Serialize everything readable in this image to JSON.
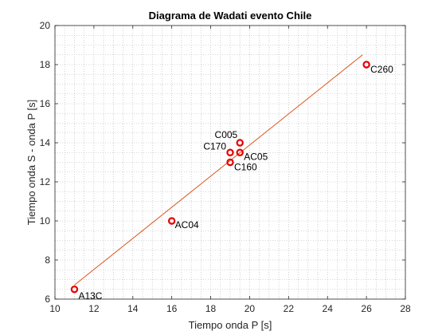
{
  "chart_data": {
    "type": "scatter",
    "title": "Diagrama de Wadati evento Chile",
    "xlabel": "Tiempo onda P [s]",
    "ylabel": "Tiempo onda S - onda P [s]",
    "xlim": [
      10,
      28
    ],
    "ylim": [
      6,
      20
    ],
    "xticks": [
      10,
      12,
      14,
      16,
      18,
      20,
      22,
      24,
      26,
      28
    ],
    "yticks": [
      6,
      8,
      10,
      12,
      14,
      16,
      18,
      20
    ],
    "grid": "minor-dotted",
    "points": [
      {
        "label": "A13C",
        "x": 11,
        "y": 6.5
      },
      {
        "label": "AC04",
        "x": 16,
        "y": 10
      },
      {
        "label": "C160",
        "x": 19,
        "y": 13
      },
      {
        "label": "C170",
        "x": 19,
        "y": 13.5
      },
      {
        "label": "AC05",
        "x": 19.5,
        "y": 13.5
      },
      {
        "label": "C005",
        "x": 19.5,
        "y": 14
      },
      {
        "label": "C260",
        "x": 26,
        "y": 18
      }
    ],
    "fit_line": {
      "x": [
        11,
        25.8
      ],
      "y": [
        6.72,
        18.5
      ]
    },
    "colors": {
      "marker": "#e60000",
      "fit": "#d95319",
      "grid": "#b0b0b0"
    }
  }
}
